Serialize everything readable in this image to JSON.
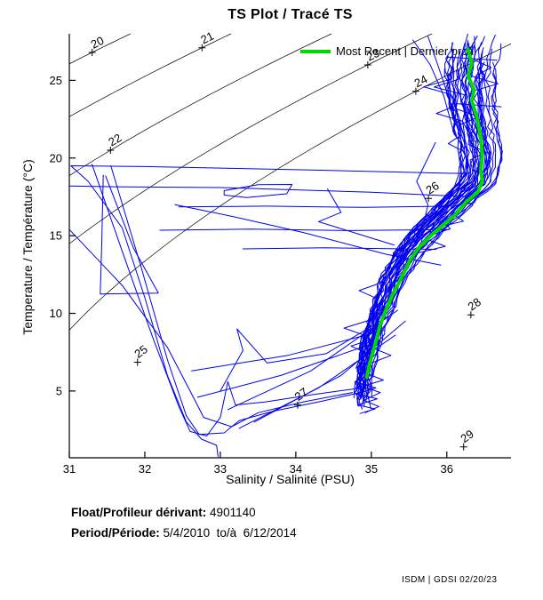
{
  "title": "TS Plot / Tracé TS",
  "legend": {
    "label": "Most Recent | Dernier profil",
    "color": "#00d800"
  },
  "axes": {
    "x": {
      "label": "Salinity / Salinité (PSU)",
      "ticks": [
        31,
        32,
        33,
        34,
        35,
        36
      ],
      "range": [
        31,
        36.85
      ]
    },
    "y": {
      "label": "Temperature / Température (°C)",
      "ticks": [
        5,
        10,
        15,
        20,
        25
      ],
      "range": [
        0.7,
        28
      ]
    }
  },
  "footer": {
    "float_label": "Float/Profileur dérivant:",
    "float_value": "4901140",
    "period_label": "Period/Période:",
    "period_value": "5/4/2010  to/à  6/12/2014",
    "credit": "ISDM | GDSI 02/20/23"
  },
  "chart_data": {
    "type": "line",
    "title": "TS Plot / Tracé TS",
    "xlabel": "Salinity / Salinité (PSU)",
    "ylabel": "Temperature / Température (°C)",
    "xlim": [
      31,
      36.85
    ],
    "ylim": [
      0.7,
      28
    ],
    "grid": false,
    "legend_position": "top-right-inside",
    "colors": {
      "profiles": "#0000ee",
      "most_recent": "#00d800",
      "isopycnals": "#000000"
    },
    "isopycnals": {
      "description": "sigma-t density contours (kg/m^3 - 1000), labeled inline with + markers",
      "levels": [
        20,
        21,
        22,
        23,
        24,
        25,
        26,
        27,
        28,
        29
      ],
      "labels": [
        {
          "level": 20,
          "T_at": 26.8
        },
        {
          "level": 21,
          "T_at": 27.1
        },
        {
          "level": 22,
          "T_at": 20.5
        },
        {
          "level": 23,
          "T_at": 26.0
        },
        {
          "level": 24,
          "T_at": 24.3
        },
        {
          "level": 25,
          "T_at": 6.85
        },
        {
          "level": 26,
          "T_at": 17.4
        },
        {
          "level": 27,
          "T_at": 4.1
        },
        {
          "level": 28,
          "T_at": 9.9
        },
        {
          "level": 29,
          "T_at": 1.4
        }
      ]
    },
    "most_recent_profile": [
      [
        36.28,
        27.0
      ],
      [
        36.33,
        26.1
      ],
      [
        36.28,
        25.3
      ],
      [
        36.36,
        24.4
      ],
      [
        36.33,
        23.7
      ],
      [
        36.4,
        22.6
      ],
      [
        36.45,
        21.3
      ],
      [
        36.47,
        20.1
      ],
      [
        36.45,
        19.2
      ],
      [
        36.47,
        18.5
      ],
      [
        36.41,
        17.8
      ],
      [
        36.26,
        17.2
      ],
      [
        36.1,
        16.3
      ],
      [
        35.96,
        15.7
      ],
      [
        35.81,
        15.1
      ],
      [
        35.64,
        14.3
      ],
      [
        35.52,
        13.5
      ],
      [
        35.4,
        12.3
      ],
      [
        35.29,
        11.3
      ],
      [
        35.2,
        10.3
      ],
      [
        35.12,
        9.3
      ],
      [
        35.05,
        8.0
      ],
      [
        34.98,
        6.8
      ],
      [
        34.94,
        5.9
      ]
    ],
    "profile_band": {
      "description": "dense ensemble of ~4 years of float TS profiles hugging the most-recent curve",
      "count": 36,
      "center": [
        [
          28,
          36.42
        ],
        [
          27,
          36.36
        ],
        [
          26,
          36.33
        ],
        [
          25,
          36.32
        ],
        [
          24,
          36.33
        ],
        [
          23,
          36.35
        ],
        [
          22,
          36.38
        ],
        [
          21,
          36.43
        ],
        [
          20,
          36.46
        ],
        [
          19,
          36.44
        ],
        [
          18.3,
          36.38
        ],
        [
          17.5,
          36.2
        ],
        [
          16.5,
          36.0
        ],
        [
          15.5,
          35.78
        ],
        [
          14.5,
          35.6
        ],
        [
          13.5,
          35.45
        ],
        [
          12.5,
          35.33
        ],
        [
          11.5,
          35.24
        ],
        [
          10.5,
          35.16
        ],
        [
          9.5,
          35.08
        ],
        [
          8.5,
          35.02
        ],
        [
          7.5,
          34.97
        ],
        [
          6.5,
          34.93
        ],
        [
          5.5,
          34.9
        ],
        [
          4.5,
          34.88
        ],
        [
          3.5,
          34.86
        ]
      ],
      "spread_top": 0.35,
      "spread_bottom": 0.09
    },
    "outlier_profiles": [
      [
        [
          36.33,
          17.5
        ],
        [
          35.0,
          17.8
        ],
        [
          33.0,
          18.1
        ],
        [
          31.6,
          18.15
        ],
        [
          31.0,
          18.2
        ]
      ],
      [
        [
          36.25,
          19.0
        ],
        [
          34.0,
          19.25
        ],
        [
          32.0,
          19.45
        ],
        [
          31.02,
          19.5
        ],
        [
          31.25,
          18.5
        ],
        [
          31.7,
          15.5
        ],
        [
          32.0,
          11.0
        ],
        [
          32.3,
          6.0
        ],
        [
          32.55,
          3.0
        ],
        [
          32.75,
          1.9
        ],
        [
          32.95,
          1.5
        ],
        [
          32.97,
          0.78
        ]
      ],
      [
        [
          31.45,
          18.9
        ],
        [
          31.43,
          14.5
        ],
        [
          31.41,
          11.25
        ],
        [
          32.18,
          11.3
        ],
        [
          31.85,
          14.2
        ],
        [
          31.48,
          18.85
        ]
      ],
      [
        [
          31.3,
          19.6
        ],
        [
          31.7,
          14.0
        ],
        [
          32.1,
          8.5
        ],
        [
          32.45,
          4.0
        ],
        [
          32.6,
          2.4
        ],
        [
          32.82,
          2.1
        ],
        [
          33.0,
          3.3
        ],
        [
          33.1,
          5.6
        ],
        [
          33.2,
          4.1
        ],
        [
          33.6,
          4.3
        ],
        [
          34.2,
          4.75
        ],
        [
          34.8,
          5.15
        ],
        [
          35.02,
          5.9
        ]
      ],
      [
        [
          31.55,
          19.5
        ],
        [
          31.95,
          13.0
        ],
        [
          32.3,
          7.0
        ],
        [
          32.55,
          3.4
        ],
        [
          32.72,
          2.2
        ],
        [
          33.05,
          2.3
        ],
        [
          33.25,
          3.1
        ],
        [
          33.7,
          3.7
        ],
        [
          34.35,
          4.35
        ],
        [
          34.9,
          4.95
        ]
      ],
      [
        [
          31.0,
          15.4
        ],
        [
          31.7,
          11.8
        ],
        [
          32.3,
          7.8
        ],
        [
          32.6,
          5.0
        ],
        [
          32.78,
          3.3
        ],
        [
          33.15,
          2.7
        ],
        [
          33.5,
          3.6
        ],
        [
          34.1,
          4.3
        ],
        [
          34.75,
          4.9
        ]
      ],
      [
        [
          32.45,
          16.85
        ],
        [
          33.6,
          16.9
        ],
        [
          34.9,
          16.82
        ],
        [
          36.1,
          16.9
        ],
        [
          36.32,
          17.1
        ]
      ],
      [
        [
          32.2,
          15.35
        ],
        [
          33.4,
          15.42
        ],
        [
          34.7,
          15.33
        ],
        [
          36.03,
          15.4
        ]
      ],
      [
        [
          33.3,
          14.15
        ],
        [
          34.4,
          14.22
        ],
        [
          35.86,
          14.12
        ]
      ],
      [
        [
          33.05,
          17.9
        ],
        [
          33.5,
          18.28
        ],
        [
          33.95,
          18.3
        ],
        [
          33.88,
          17.7
        ],
        [
          33.35,
          17.45
        ],
        [
          33.05,
          17.62
        ],
        [
          33.05,
          17.9
        ]
      ],
      [
        [
          33.25,
          2.6
        ],
        [
          34.3,
          5.2
        ],
        [
          35.32,
          8.6
        ]
      ],
      [
        [
          33.45,
          3.0
        ],
        [
          34.6,
          6.0
        ],
        [
          35.45,
          9.5
        ]
      ],
      [
        [
          33.1,
          3.8
        ],
        [
          34.2,
          6.3
        ],
        [
          35.35,
          10.2
        ]
      ],
      [
        [
          32.7,
          4.6
        ],
        [
          33.8,
          6.0
        ],
        [
          35.1,
          8.2
        ]
      ],
      [
        [
          32.62,
          6.3
        ],
        [
          33.9,
          7.3
        ],
        [
          35.17,
          8.9
        ]
      ],
      [
        [
          33.0,
          5.0
        ],
        [
          33.3,
          7.6
        ],
        [
          33.22,
          9.0
        ],
        [
          33.62,
          6.8
        ],
        [
          34.4,
          7.4
        ],
        [
          35.22,
          9.8
        ]
      ],
      [
        [
          32.4,
          17.0
        ],
        [
          33.2,
          16.2
        ],
        [
          34.1,
          15.2
        ],
        [
          35.2,
          13.8
        ],
        [
          35.92,
          13.1
        ]
      ],
      [
        [
          34.78,
          5.6
        ],
        [
          35.06,
          5.2
        ],
        [
          34.8,
          4.8
        ],
        [
          35.08,
          4.5
        ],
        [
          34.82,
          4.1
        ],
        [
          35.05,
          3.85
        ],
        [
          34.85,
          3.55
        ]
      ],
      [
        [
          34.9,
          6.2
        ],
        [
          35.16,
          5.7
        ],
        [
          34.88,
          5.3
        ],
        [
          35.12,
          4.9
        ],
        [
          34.9,
          4.4
        ],
        [
          35.1,
          4.0
        ],
        [
          34.92,
          3.6
        ]
      ],
      [
        [
          35.55,
          27.6
        ],
        [
          35.78,
          26.0
        ],
        [
          35.96,
          24.0
        ],
        [
          36.1,
          21.5
        ]
      ],
      [
        [
          35.75,
          27.85
        ],
        [
          35.95,
          25.0
        ],
        [
          36.15,
          22.0
        ]
      ],
      [
        [
          36.0,
          26.5
        ],
        [
          36.66,
          26.3
        ]
      ],
      [
        [
          36.12,
          23.5
        ],
        [
          36.72,
          23.3
        ]
      ],
      [
        [
          34.42,
          18.0
        ],
        [
          34.6,
          16.5
        ],
        [
          34.3,
          15.9
        ],
        [
          34.9,
          15.0
        ],
        [
          35.3,
          14.4
        ]
      ],
      [
        [
          35.85,
          21.0
        ],
        [
          35.6,
          18.5
        ],
        [
          35.75,
          17.0
        ],
        [
          35.7,
          15.9
        ]
      ]
    ]
  }
}
